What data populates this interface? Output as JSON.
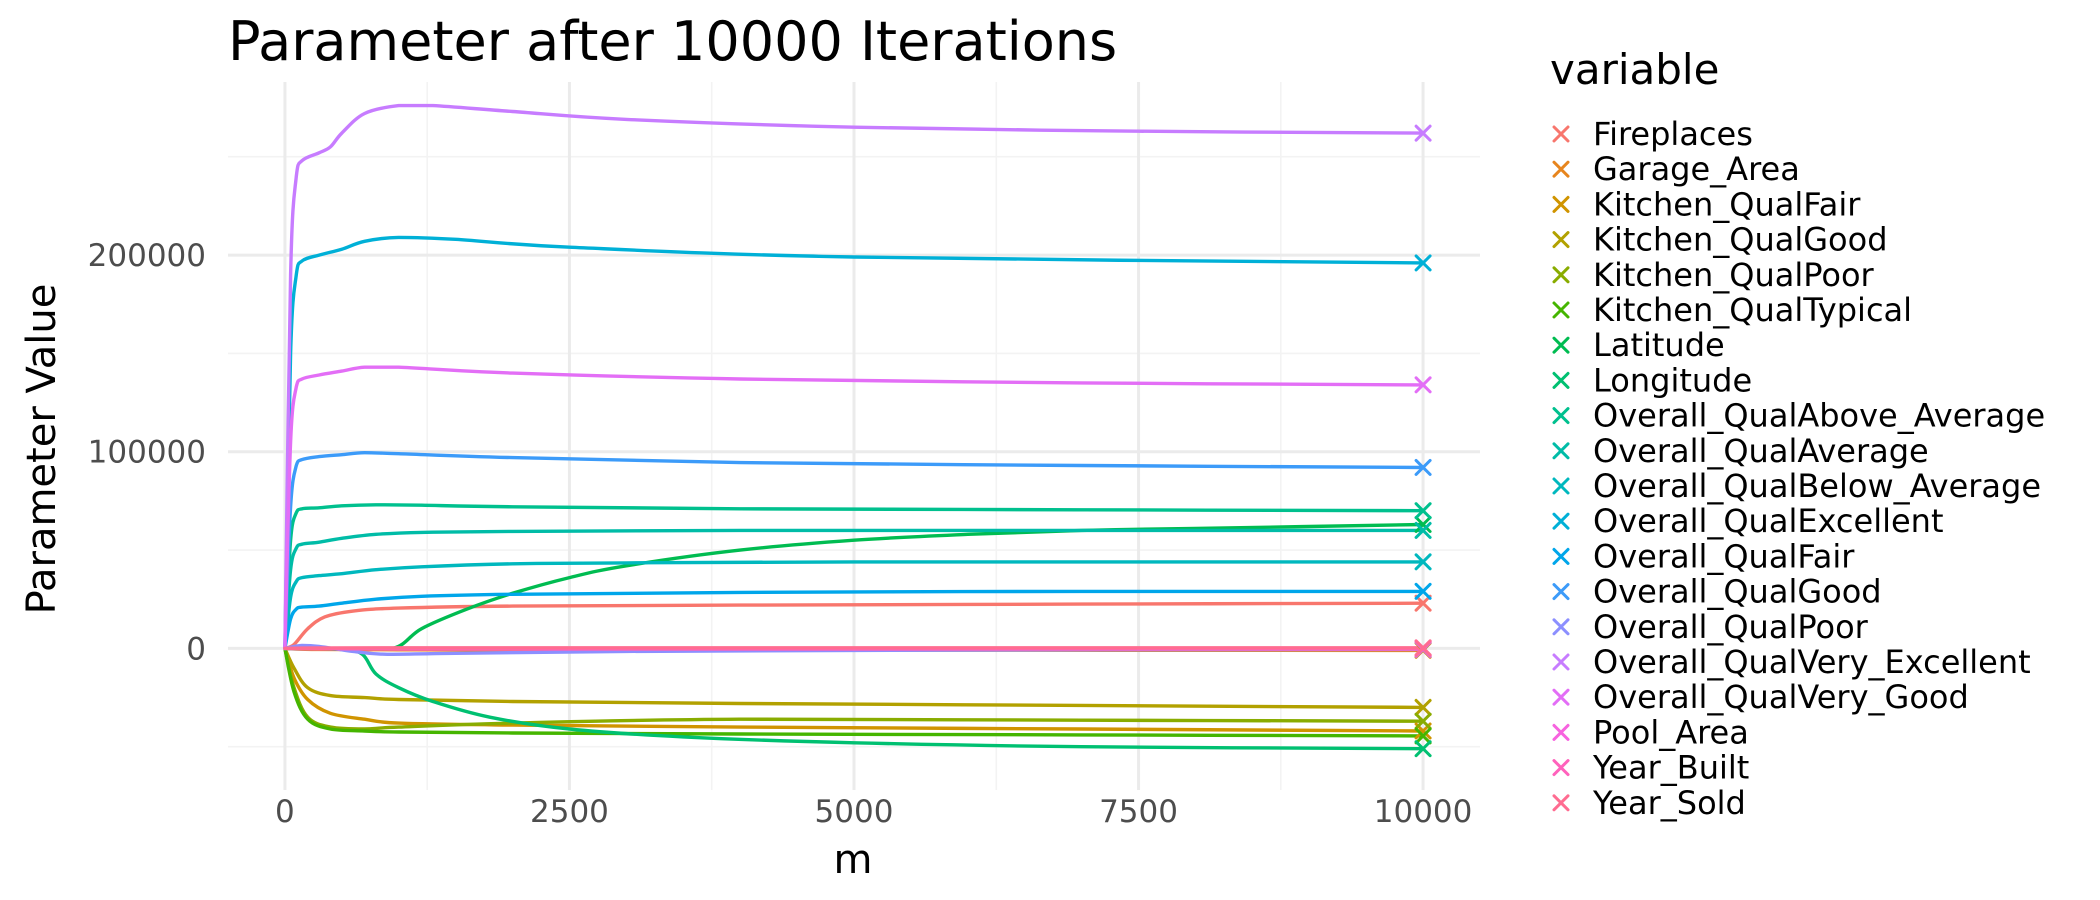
{
  "chart_data": {
    "type": "line",
    "title": "Parameter after 10000 Iterations",
    "xlabel": "m",
    "ylabel": "Parameter Value",
    "xlim": [
      -500,
      10500
    ],
    "ylim": [
      -72000,
      288000
    ],
    "x_ticks": [
      0,
      2500,
      5000,
      7500,
      10000
    ],
    "y_ticks": [
      0,
      100000,
      200000
    ],
    "y_minor": [
      -50000,
      50000,
      150000,
      250000
    ],
    "x_minor": [
      1250,
      3750,
      6250,
      8750
    ],
    "grid": true,
    "legend": {
      "title": "variable",
      "position": "right"
    },
    "series": [
      {
        "name": "Fireplaces",
        "color": "#F8766D",
        "x": [
          0,
          80,
          200,
          350,
          600,
          1000,
          2000,
          4000,
          7000,
          10000
        ],
        "values": [
          0,
          2000,
          10000,
          16000,
          19000,
          20500,
          21500,
          22000,
          22500,
          23000
        ]
      },
      {
        "name": "Garage_Area",
        "color": "#E7851E",
        "x": [
          0,
          100,
          300,
          600,
          1000,
          2000,
          5000,
          10000
        ],
        "values": [
          0,
          -300,
          -500,
          -600,
          -700,
          -800,
          -900,
          -1000
        ]
      },
      {
        "name": "Kitchen_QualFair",
        "color": "#D09400",
        "x": [
          0,
          80,
          200,
          400,
          700,
          1000,
          2000,
          4000,
          7000,
          10000
        ],
        "values": [
          0,
          -15000,
          -26000,
          -33000,
          -36000,
          -38000,
          -39000,
          -40000,
          -41000,
          -42000
        ]
      },
      {
        "name": "Kitchen_QualGood",
        "color": "#B2A100",
        "x": [
          0,
          80,
          200,
          400,
          700,
          1000,
          2000,
          4000,
          7000,
          10000
        ],
        "values": [
          0,
          -10000,
          -20000,
          -24000,
          -25000,
          -26000,
          -27000,
          -28000,
          -29000,
          -30000
        ]
      },
      {
        "name": "Kitchen_QualPoor",
        "color": "#89AC00",
        "x": [
          0,
          80,
          200,
          400,
          700,
          1000,
          2000,
          4000,
          7000,
          10000
        ],
        "values": [
          0,
          -20000,
          -35000,
          -40000,
          -41000,
          -40000,
          -38000,
          -36000,
          -36500,
          -37000
        ]
      },
      {
        "name": "Kitchen_QualTypical",
        "color": "#45B500",
        "x": [
          0,
          80,
          200,
          400,
          700,
          1000,
          2000,
          4000,
          7000,
          10000
        ],
        "values": [
          0,
          -22000,
          -36000,
          -41000,
          -42000,
          -42500,
          -43000,
          -43500,
          -44000,
          -44500
        ]
      },
      {
        "name": "Latitude",
        "color": "#00BC51",
        "x": [
          0,
          500,
          950,
          1200,
          1600,
          2000,
          2500,
          3000,
          4000,
          5000,
          6000,
          7000,
          8000,
          10000
        ],
        "values": [
          0,
          0,
          0,
          10000,
          20000,
          28000,
          36000,
          42000,
          50000,
          55000,
          58000,
          60000,
          61000,
          63000
        ]
      },
      {
        "name": "Longitude",
        "color": "#00C071",
        "x": [
          0,
          500,
          680,
          800,
          1000,
          1300,
          1800,
          2500,
          3500,
          5000,
          7000,
          10000
        ],
        "values": [
          0,
          -500,
          -3000,
          -13000,
          -20000,
          -27000,
          -35000,
          -41000,
          -45000,
          -48000,
          -50000,
          -51000
        ]
      },
      {
        "name": "Overall_QualAbove_Average",
        "color": "#00C08E",
        "x": [
          0,
          50,
          100,
          150,
          300,
          500,
          800,
          1200,
          2000,
          4000,
          7000,
          10000
        ],
        "values": [
          0,
          55000,
          69000,
          71000,
          71500,
          72500,
          73000,
          72800,
          72000,
          71000,
          70500,
          70000
        ]
      },
      {
        "name": "Overall_QualAverage",
        "color": "#00BCA7",
        "x": [
          0,
          50,
          100,
          150,
          300,
          500,
          800,
          1200,
          2000,
          4000,
          7000,
          10000
        ],
        "values": [
          0,
          40000,
          51000,
          53000,
          54000,
          56000,
          58000,
          59000,
          59500,
          60000,
          60000,
          60000
        ]
      },
      {
        "name": "Overall_QualBelow_Average",
        "color": "#00B8BE",
        "x": [
          0,
          50,
          100,
          150,
          300,
          500,
          800,
          1200,
          2000,
          3000,
          5000,
          10000
        ],
        "values": [
          0,
          26000,
          34000,
          36000,
          37000,
          38000,
          40000,
          41500,
          43000,
          43500,
          44000,
          44000
        ]
      },
      {
        "name": "Overall_QualExcellent",
        "color": "#00B0D7",
        "x": [
          0,
          50,
          100,
          150,
          300,
          500,
          700,
          1000,
          1500,
          2500,
          5000,
          10000
        ],
        "values": [
          0,
          150000,
          190000,
          197000,
          200000,
          203000,
          207000,
          209000,
          208000,
          204000,
          199000,
          196000
        ]
      },
      {
        "name": "Overall_QualFair",
        "color": "#00A6EA",
        "x": [
          0,
          50,
          100,
          150,
          300,
          500,
          800,
          1200,
          2000,
          4000,
          7000,
          10000
        ],
        "values": [
          0,
          15000,
          20000,
          21000,
          21500,
          23000,
          25000,
          26500,
          27500,
          28500,
          29000,
          29000
        ]
      },
      {
        "name": "Overall_QualGood",
        "color": "#3C9BF9",
        "x": [
          0,
          50,
          100,
          150,
          300,
          500,
          700,
          1000,
          2000,
          4000,
          7000,
          10000
        ],
        "values": [
          0,
          72000,
          93000,
          96000,
          97500,
          98500,
          99500,
          99000,
          97000,
          94500,
          93000,
          92000
        ]
      },
      {
        "name": "Overall_QualPoor",
        "color": "#8C8FFF",
        "x": [
          0,
          150,
          300,
          600,
          900,
          1500,
          3000,
          6000,
          10000
        ],
        "values": [
          0,
          1500,
          1000,
          -1500,
          -3000,
          -2500,
          -1500,
          -800,
          -500
        ]
      },
      {
        "name": "Overall_QualVery_Excellent",
        "color": "#C77CFF",
        "x": [
          0,
          50,
          100,
          150,
          300,
          400,
          500,
          700,
          1000,
          1300,
          2000,
          3000,
          5000,
          7500,
          10000
        ],
        "values": [
          0,
          190000,
          240000,
          248000,
          252000,
          255000,
          262000,
          272000,
          276000,
          276000,
          273000,
          269000,
          265000,
          263000,
          262000
        ]
      },
      {
        "name": "Overall_QualVery_Good",
        "color": "#E36EF6",
        "x": [
          0,
          50,
          100,
          150,
          300,
          500,
          700,
          1000,
          2000,
          4000,
          7000,
          10000
        ],
        "values": [
          0,
          105000,
          133000,
          137000,
          139000,
          141000,
          143000,
          143000,
          140000,
          137000,
          135000,
          134000
        ]
      },
      {
        "name": "Pool_Area",
        "color": "#F763DF",
        "x": [
          0,
          300,
          1000,
          3000,
          7000,
          10000
        ],
        "values": [
          0,
          0,
          0,
          0,
          0,
          0
        ]
      },
      {
        "name": "Year_Built",
        "color": "#FF62BC",
        "x": [
          0,
          300,
          1000,
          3000,
          7000,
          10000
        ],
        "values": [
          0,
          -200,
          -300,
          -300,
          -300,
          -300
        ]
      },
      {
        "name": "Year_Sold",
        "color": "#FF6C91",
        "x": [
          0,
          300,
          1000,
          3000,
          7000,
          10000
        ],
        "values": [
          0,
          200,
          300,
          300,
          300,
          300
        ]
      }
    ]
  }
}
